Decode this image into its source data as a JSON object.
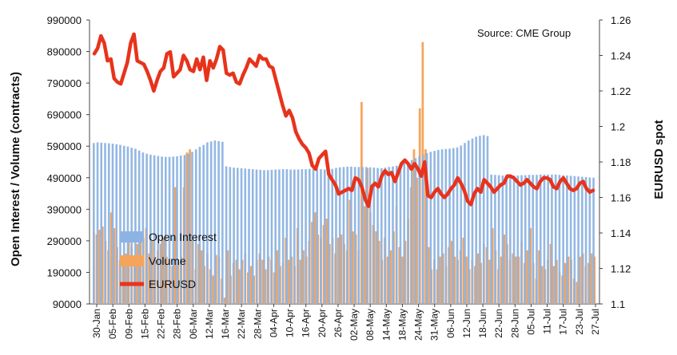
{
  "chart_data": {
    "type": "bar+line",
    "source_note": "Source: CME Group",
    "left_axis": {
      "label": "Open Interest / Volume (contracts)",
      "ticks": [
        "990000",
        "890000",
        "790000",
        "690000",
        "590000",
        "490000",
        "390000",
        "290000",
        "190000",
        "90000"
      ],
      "range": [
        90000,
        990000
      ]
    },
    "right_axis": {
      "label": "EURUSD spot",
      "ticks": [
        "1.26",
        "1.24",
        "1.22",
        "1.2",
        "1.18",
        "1.16",
        "1.14",
        "1.12",
        "1.1"
      ],
      "range": [
        1.1,
        1.26
      ]
    },
    "x_tick_labels": [
      "30-Jan",
      "05-Feb",
      "09-Feb",
      "15-Feb",
      "22-Feb",
      "28-Feb",
      "06-Mar",
      "12-Mar",
      "16-Mar",
      "22-Mar",
      "28-Mar",
      "04-Apr",
      "10-Apr",
      "16-Apr",
      "20-Apr",
      "26-Apr",
      "02-May",
      "08-May",
      "14-May",
      "18-May",
      "24-May",
      "31-May",
      "06-Jun",
      "12-Jun",
      "18-Jun",
      "22-Jun",
      "28-Jun",
      "05-Jul",
      "11-Jul",
      "17-Jul",
      "23-Jul",
      "27-Jul"
    ],
    "legend": [
      {
        "name": "Open Interest",
        "color": "#8db3e2"
      },
      {
        "name": "Volume",
        "color": "#f5a45c"
      },
      {
        "name": "EURUSD",
        "color": "#e8331c"
      }
    ],
    "series": [
      {
        "name": "Open Interest",
        "axis": "left",
        "values": [
          600000,
          602000,
          601000,
          600000,
          599000,
          598000,
          596000,
          594000,
          591000,
          589000,
          585000,
          582000,
          576000,
          570000,
          566000,
          563000,
          561000,
          559000,
          557000,
          556000,
          556000,
          557000,
          558000,
          560000,
          562000,
          566000,
          572000,
          580000,
          588000,
          594000,
          602000,
          605000,
          608000,
          606000,
          604000,
          526000,
          524000,
          522000,
          521000,
          520000,
          519000,
          518000,
          517000,
          516000,
          515000,
          514000,
          514000,
          515000,
          516000,
          516000,
          517000,
          517000,
          516000,
          516000,
          516000,
          517000,
          517000,
          518000,
          518000,
          517000,
          517000,
          516000,
          516000,
          518000,
          521000,
          523000,
          524000,
          525000,
          525000,
          524000,
          524000,
          524000,
          524000,
          523000,
          522000,
          521000,
          520000,
          522000,
          524000,
          526000,
          528000,
          532000,
          536000,
          540000,
          546000,
          552000,
          558000,
          564000,
          568000,
          572000,
          575000,
          578000,
          580000,
          581000,
          582000,
          584000,
          586000,
          592000,
          600000,
          608000,
          614000,
          620000,
          623000,
          625000,
          622000,
          500000,
          499000,
          498000,
          497000,
          497000,
          497000,
          497000,
          497000,
          498000,
          498000,
          499000,
          499000,
          499000,
          500000,
          500000,
          500000,
          500000,
          500000,
          499000,
          498000,
          497000,
          496000,
          495000,
          494000,
          493000,
          492000,
          491000,
          490000
        ]
      },
      {
        "name": "Volume",
        "axis": "left",
        "values": [
          320000,
          310000,
          325000,
          335000,
          290000,
          260000,
          380000,
          330000,
          270000,
          230000,
          210000,
          250000,
          300000,
          270000,
          230000,
          280000,
          320000,
          300000,
          330000,
          250000,
          290000,
          230000,
          260000,
          280000,
          300000,
          240000,
          230000,
          210000,
          460000,
          220000,
          240000,
          460000,
          570000,
          580000,
          290000,
          200000,
          280000,
          260000,
          210000,
          250000,
          200000,
          180000,
          245000,
          240000,
          170000,
          110000,
          260000,
          180000,
          220000,
          230000,
          200000,
          230000,
          250000,
          190000,
          210000,
          180000,
          230000,
          250000,
          230000,
          200000,
          240000,
          230000,
          190000,
          260000,
          210000,
          220000,
          300000,
          230000,
          240000,
          210000,
          330000,
          230000,
          260000,
          240000,
          290000,
          350000,
          380000,
          310000,
          300000,
          340000,
          360000,
          280000,
          300000,
          250000,
          300000,
          310000,
          280000,
          260000,
          420000,
          320000,
          310000,
          260000,
          730000,
          400000,
          520000,
          380000,
          340000,
          320000,
          290000,
          230000,
          300000,
          240000,
          260000,
          320000,
          400000,
          270000,
          240000,
          290000,
          360000,
          460000,
          580000,
          490000,
          710000,
          920000,
          580000,
          270000,
          200000,
          230000,
          200000,
          240000,
          250000,
          210000,
          270000,
          290000,
          240000,
          230000,
          260000,
          300000,
          240000,
          200000,
          230000,
          210000,
          250000,
          220000,
          280000,
          270000,
          230000,
          330000,
          260000,
          200000,
          240000,
          310000,
          280000,
          230000,
          250000,
          240000,
          240000,
          290000,
          220000,
          260000,
          330000,
          220000,
          170000,
          260000,
          210000,
          200000,
          230000,
          280000,
          210000,
          230000,
          190000,
          180000,
          220000,
          240000,
          230000,
          170000,
          160000,
          240000,
          250000,
          210000,
          220000,
          250000,
          240000
        ]
      },
      {
        "name": "EURUSD",
        "axis": "right",
        "values": [
          1.241,
          1.244,
          1.251,
          1.247,
          1.237,
          1.238,
          1.227,
          1.225,
          1.224,
          1.23,
          1.236,
          1.247,
          1.252,
          1.237,
          1.236,
          1.235,
          1.231,
          1.226,
          1.22,
          1.226,
          1.231,
          1.233,
          1.241,
          1.242,
          1.228,
          1.23,
          1.232,
          1.24,
          1.237,
          1.232,
          1.231,
          1.238,
          1.232,
          1.239,
          1.226,
          1.237,
          1.233,
          1.238,
          1.245,
          1.243,
          1.23,
          1.229,
          1.23,
          1.225,
          1.224,
          1.229,
          1.233,
          1.238,
          1.236,
          1.234,
          1.24,
          1.238,
          1.238,
          1.234,
          1.233,
          1.226,
          1.219,
          1.212,
          1.206,
          1.209,
          1.205,
          1.197,
          1.193,
          1.19,
          1.188,
          1.185,
          1.178,
          1.176,
          1.182,
          1.184,
          1.186,
          1.173,
          1.17,
          1.167,
          1.162,
          1.163,
          1.164,
          1.165,
          1.164,
          1.171,
          1.17,
          1.166,
          1.159,
          1.155,
          1.166,
          1.168,
          1.166,
          1.172,
          1.175,
          1.173,
          1.174,
          1.169,
          1.174,
          1.179,
          1.181,
          1.179,
          1.176,
          1.179,
          1.176,
          1.172,
          1.18,
          1.161,
          1.16,
          1.163,
          1.165,
          1.162,
          1.16,
          1.162,
          1.165,
          1.167,
          1.171,
          1.168,
          1.164,
          1.158,
          1.156,
          1.162,
          1.165,
          1.163,
          1.17,
          1.168,
          1.166,
          1.163,
          1.165,
          1.167,
          1.168,
          1.172,
          1.172,
          1.171,
          1.169,
          1.167,
          1.168,
          1.17,
          1.168,
          1.166,
          1.165,
          1.169,
          1.171,
          1.171,
          1.17,
          1.166,
          1.165,
          1.169,
          1.171,
          1.168,
          1.165,
          1.164,
          1.165,
          1.168,
          1.169,
          1.165,
          1.163,
          1.164
        ]
      }
    ],
    "grid": false,
    "legend_position": "bottom-left"
  }
}
